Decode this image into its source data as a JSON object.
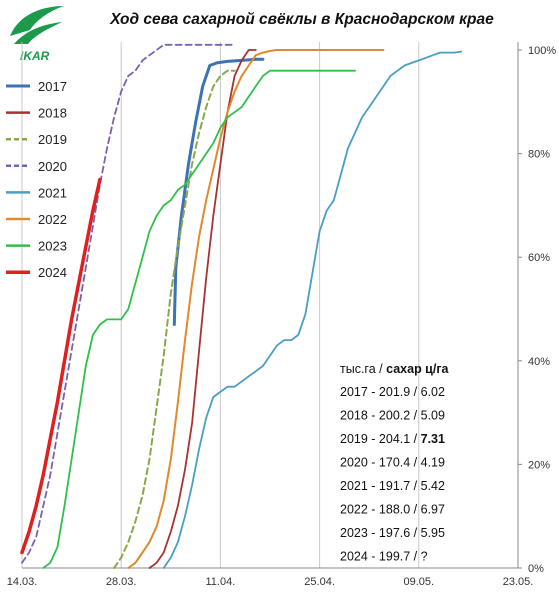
{
  "logo": {
    "text": "IKAR",
    "color": "#1a9a4a"
  },
  "chart_data": {
    "type": "line",
    "title": "Ход сева сахарной свёклы в Краснодарском крае",
    "xlabel": "",
    "ylabel": "",
    "x_ticks": [
      "14.03.",
      "28.03.",
      "11.04.",
      "25.04.",
      "09.05.",
      "23.05."
    ],
    "x_tick_days": [
      0,
      14,
      28,
      42,
      56,
      70
    ],
    "xlim": [
      0,
      70
    ],
    "y_ticks": [
      "0%",
      "20%",
      "40%",
      "60%",
      "80%",
      "100%"
    ],
    "y_tick_values": [
      0,
      20,
      40,
      60,
      80,
      100
    ],
    "ylim": [
      0,
      100
    ],
    "grid": "vertical",
    "legend_position": "top-left",
    "series": [
      {
        "name": "2017",
        "color": "#3d72b4",
        "dash": "solid",
        "width": 3,
        "points": [
          [
            21.5,
            47
          ],
          [
            21.7,
            58
          ],
          [
            22.5,
            68
          ],
          [
            23.5,
            78
          ],
          [
            24.5,
            86
          ],
          [
            25.5,
            93
          ],
          [
            26.5,
            97
          ],
          [
            27.5,
            97.5
          ],
          [
            29,
            97.8
          ],
          [
            31,
            98
          ],
          [
            33,
            98.2
          ],
          [
            34,
            98.2
          ]
        ]
      },
      {
        "name": "2018",
        "color": "#a83232",
        "dash": "solid",
        "width": 1.8,
        "points": [
          [
            18,
            0
          ],
          [
            19,
            1
          ],
          [
            20,
            3
          ],
          [
            21,
            7
          ],
          [
            22,
            12
          ],
          [
            23,
            19
          ],
          [
            24,
            28
          ],
          [
            25,
            42
          ],
          [
            26,
            56
          ],
          [
            27,
            68
          ],
          [
            28,
            78
          ],
          [
            29,
            88
          ],
          [
            30,
            95
          ],
          [
            31,
            98
          ],
          [
            32,
            100
          ],
          [
            33,
            100
          ]
        ]
      },
      {
        "name": "2019",
        "color": "#8aa84a",
        "dash": "dashed",
        "width": 2,
        "points": [
          [
            13,
            0
          ],
          [
            14,
            2
          ],
          [
            15,
            5
          ],
          [
            16,
            9
          ],
          [
            17,
            14
          ],
          [
            18,
            21
          ],
          [
            19,
            31
          ],
          [
            20,
            41
          ],
          [
            21,
            53
          ],
          [
            22,
            62
          ],
          [
            23,
            70
          ],
          [
            24,
            78
          ],
          [
            25,
            84
          ],
          [
            26,
            89
          ],
          [
            27,
            93
          ],
          [
            28,
            95
          ],
          [
            29,
            96
          ],
          [
            30,
            96
          ]
        ]
      },
      {
        "name": "2020",
        "color": "#7b5fb0",
        "dash": "dashed",
        "width": 1.8,
        "points": [
          [
            0,
            1
          ],
          [
            1,
            3
          ],
          [
            2,
            6
          ],
          [
            3,
            12
          ],
          [
            4,
            18
          ],
          [
            5,
            26
          ],
          [
            6,
            34
          ],
          [
            7,
            42
          ],
          [
            8,
            50
          ],
          [
            9,
            58
          ],
          [
            10,
            66
          ],
          [
            11,
            74
          ],
          [
            12,
            81
          ],
          [
            13,
            87
          ],
          [
            14,
            92
          ],
          [
            15,
            95
          ],
          [
            16,
            96
          ],
          [
            17,
            98
          ],
          [
            18,
            99
          ],
          [
            19,
            100
          ],
          [
            20,
            101
          ],
          [
            22,
            101
          ],
          [
            24,
            101
          ],
          [
            26,
            101
          ],
          [
            28,
            101
          ],
          [
            30,
            101
          ]
        ]
      },
      {
        "name": "2021",
        "color": "#4a9ec4",
        "dash": "solid",
        "width": 1.8,
        "points": [
          [
            20,
            0
          ],
          [
            21,
            2
          ],
          [
            22,
            5
          ],
          [
            23,
            10
          ],
          [
            24,
            16
          ],
          [
            25,
            23
          ],
          [
            26,
            29
          ],
          [
            27,
            33
          ],
          [
            28,
            34
          ],
          [
            29,
            35
          ],
          [
            30,
            35
          ],
          [
            31,
            36
          ],
          [
            32,
            37
          ],
          [
            33,
            38
          ],
          [
            34,
            39
          ],
          [
            35,
            41
          ],
          [
            36,
            43
          ],
          [
            37,
            44
          ],
          [
            38,
            44
          ],
          [
            39,
            45
          ],
          [
            40,
            49
          ],
          [
            41,
            57
          ],
          [
            42,
            65
          ],
          [
            43,
            69
          ],
          [
            44,
            71
          ],
          [
            45,
            76
          ],
          [
            46,
            81
          ],
          [
            47,
            84
          ],
          [
            48,
            87
          ],
          [
            49,
            89
          ],
          [
            50,
            91
          ],
          [
            51,
            93
          ],
          [
            52,
            95
          ],
          [
            53,
            96
          ],
          [
            54,
            97
          ],
          [
            55,
            97.5
          ],
          [
            56,
            98
          ],
          [
            57,
            98.5
          ],
          [
            58,
            99
          ],
          [
            59,
            99.5
          ],
          [
            60,
            99.5
          ],
          [
            61,
            99.5
          ],
          [
            62,
            99.7
          ]
        ]
      },
      {
        "name": "2022",
        "color": "#e08a30",
        "dash": "solid",
        "width": 2,
        "points": [
          [
            15,
            0
          ],
          [
            16,
            1
          ],
          [
            17,
            3
          ],
          [
            18,
            5
          ],
          [
            19,
            8
          ],
          [
            20,
            13
          ],
          [
            21,
            21
          ],
          [
            22,
            32
          ],
          [
            23,
            44
          ],
          [
            24,
            55
          ],
          [
            25,
            64
          ],
          [
            26,
            71
          ],
          [
            27,
            77
          ],
          [
            28,
            83
          ],
          [
            29,
            88
          ],
          [
            30,
            92
          ],
          [
            31,
            95
          ],
          [
            32,
            97
          ],
          [
            33,
            99
          ],
          [
            34,
            99.5
          ],
          [
            35,
            99.8
          ],
          [
            36,
            100
          ],
          [
            38,
            100
          ],
          [
            40,
            100
          ],
          [
            42,
            100
          ],
          [
            44,
            100
          ],
          [
            46,
            100
          ],
          [
            48,
            100
          ],
          [
            50,
            100
          ],
          [
            51,
            100
          ]
        ]
      },
      {
        "name": "2023",
        "color": "#2ec04a",
        "dash": "solid",
        "width": 1.8,
        "points": [
          [
            3,
            0
          ],
          [
            4,
            1
          ],
          [
            5,
            4
          ],
          [
            6,
            12
          ],
          [
            7,
            21
          ],
          [
            8,
            30
          ],
          [
            9,
            39
          ],
          [
            10,
            45
          ],
          [
            11,
            47
          ],
          [
            12,
            48
          ],
          [
            13,
            48
          ],
          [
            14,
            48
          ],
          [
            15,
            50
          ],
          [
            16,
            55
          ],
          [
            17,
            60
          ],
          [
            18,
            65
          ],
          [
            19,
            68
          ],
          [
            20,
            70
          ],
          [
            21,
            71
          ],
          [
            22,
            73
          ],
          [
            23,
            74
          ],
          [
            24,
            76
          ],
          [
            25,
            78
          ],
          [
            26,
            80
          ],
          [
            27,
            82
          ],
          [
            28,
            85
          ],
          [
            29,
            87
          ],
          [
            30,
            88
          ],
          [
            31,
            89
          ],
          [
            32,
            91
          ],
          [
            33,
            93
          ],
          [
            34,
            95
          ],
          [
            35,
            96
          ],
          [
            36,
            96
          ],
          [
            38,
            96
          ],
          [
            40,
            96
          ],
          [
            42,
            96
          ],
          [
            44,
            96
          ],
          [
            46,
            96
          ],
          [
            47,
            96
          ]
        ]
      },
      {
        "name": "2024",
        "color": "#e02020",
        "dash": "solid",
        "width": 3.5,
        "points": [
          [
            0,
            3
          ],
          [
            1,
            7
          ],
          [
            2,
            12
          ],
          [
            3,
            18
          ],
          [
            4,
            25
          ],
          [
            5,
            32
          ],
          [
            6,
            40
          ],
          [
            7,
            48
          ],
          [
            8,
            55
          ],
          [
            9,
            62
          ],
          [
            10,
            69
          ],
          [
            11,
            75
          ]
        ]
      }
    ],
    "stats_box": {
      "header_units": "тыс.га",
      "header_sep": " / ",
      "header_yield": "сахар ц/га",
      "rows": [
        {
          "year": "2017",
          "area": "201.9",
          "yield": "6.02",
          "sep": " - ",
          "color": "#111111",
          "bold_yield": false
        },
        {
          "year": "2018",
          "area": "200.2",
          "yield": "5.09",
          "sep": " - ",
          "color": "#111111",
          "bold_yield": false
        },
        {
          "year": "2019",
          "area": "204.1",
          "yield": "7.31",
          "sep": " - ",
          "color": "#111111",
          "bold_yield": true
        },
        {
          "year": "2020",
          "area": "170.4",
          "yield": "4.19",
          "sep": " - ",
          "color": "#111111",
          "bold_yield": false
        },
        {
          "year": "2021",
          "area": "191.7",
          "yield": "5.42",
          "sep": " - ",
          "color": "#111111",
          "bold_yield": false
        },
        {
          "year": "2022",
          "area": "188.0",
          "yield": "6.97",
          "sep": " - ",
          "color": "#111111",
          "bold_yield": false
        },
        {
          "year": "2023",
          "area": "197.6",
          "yield": "5.95",
          "sep": " - ",
          "color": "#111111",
          "bold_yield": false
        },
        {
          "year": "2024",
          "area": "199.7",
          "yield": "?",
          "sep": " - ",
          "color": "#e02020",
          "bold_yield": false
        }
      ]
    }
  }
}
